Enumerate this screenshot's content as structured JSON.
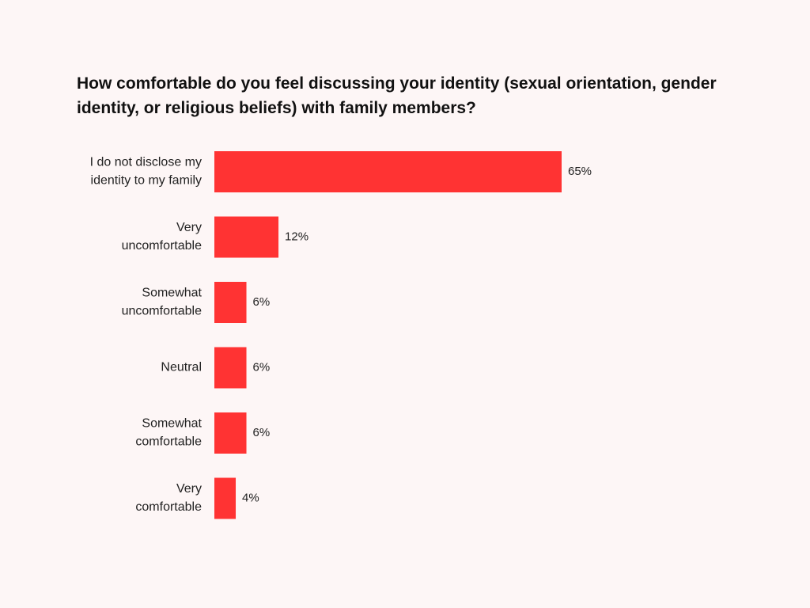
{
  "chart_data": {
    "type": "bar",
    "orientation": "horizontal",
    "title": "How comfortable do you feel discussing your identity (sexual orientation, gender identity, or religious beliefs) with family members?",
    "xlabel": "",
    "ylabel": "",
    "xlim": [
      0,
      65
    ],
    "grid": false,
    "legend": "none",
    "bar_color": "#ff3333",
    "categories": [
      [
        "I do not disclose my",
        "identity to my family"
      ],
      [
        "Very",
        "uncomfortable"
      ],
      [
        "Somewhat",
        "uncomfortable"
      ],
      [
        "Neutral"
      ],
      [
        "Somewhat",
        "comfortable"
      ],
      [
        "Very",
        "comfortable"
      ]
    ],
    "values": [
      65,
      12,
      6,
      6,
      6,
      4
    ],
    "value_labels": [
      "65%",
      "12%",
      "6%",
      "6%",
      "6%",
      "4%"
    ]
  }
}
